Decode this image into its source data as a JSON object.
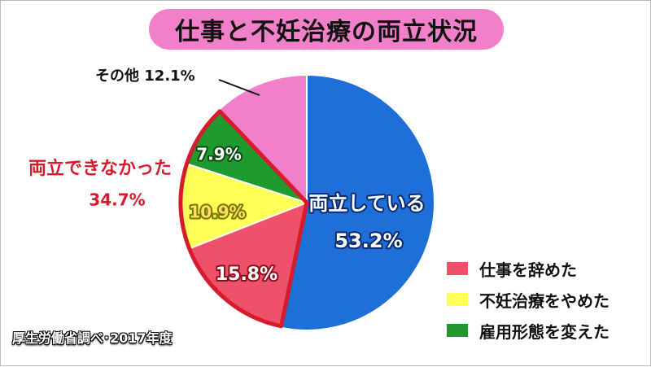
{
  "chart_data": {
    "type": "pie",
    "title": "仕事と不妊治療の両立状況",
    "slices": [
      {
        "label": "両立している",
        "value": 53.2,
        "value_label": "53.2%",
        "color": "#1f6fd9"
      },
      {
        "label": "仕事を辞めた",
        "value": 15.8,
        "value_label": "15.8%",
        "color": "#f0516a"
      },
      {
        "label": "不妊治療をやめた",
        "value": 10.9,
        "value_label": "10.9%",
        "color": "#ffff55"
      },
      {
        "label": "雇用形態を変えた",
        "value": 7.9,
        "value_label": "7.9%",
        "color": "#1e9a2e"
      },
      {
        "label": "その他",
        "value": 12.1,
        "value_label": "12.1%",
        "color": "#f27fc9"
      }
    ],
    "group": {
      "label": "両立できなかった",
      "value_label": "34.7%",
      "color": "#d61b2c"
    },
    "legend": [
      {
        "label": "仕事を辞めた",
        "color": "#f0516a"
      },
      {
        "label": "不妊治療をやめた",
        "color": "#ffff55"
      },
      {
        "label": "雇用形態を変えた",
        "color": "#1e9a2e"
      }
    ],
    "other_label": "その他",
    "source": "厚生労働省調べ･2017年度"
  }
}
